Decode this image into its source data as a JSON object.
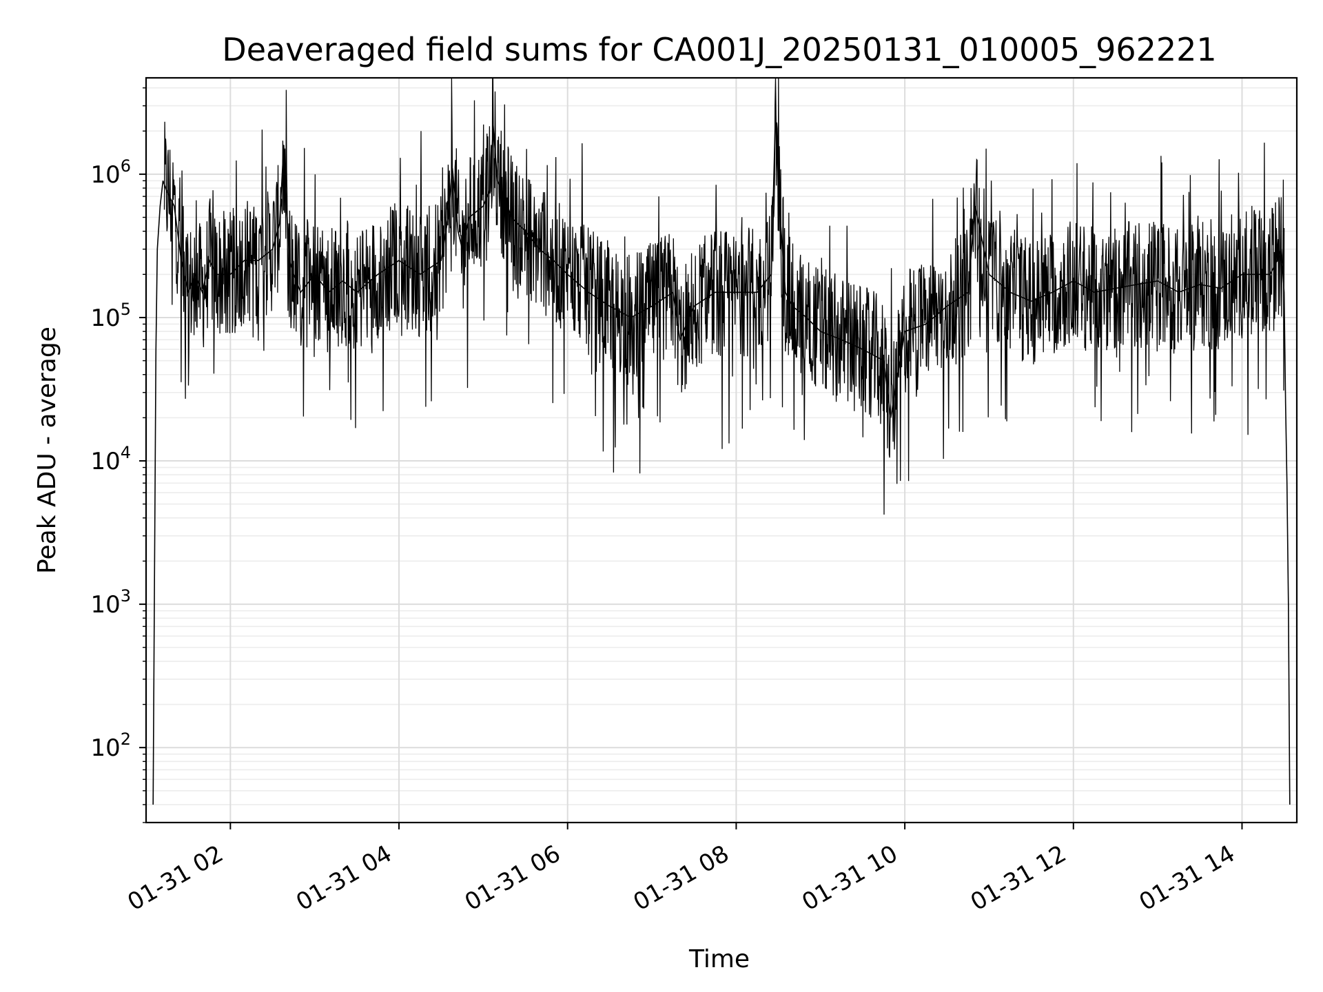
{
  "chart_data": {
    "type": "line",
    "title": "Deaveraged field sums for CA001J_20250131_010005_962221",
    "xlabel": "Time",
    "ylabel": "Peak ADU - average",
    "y_scale": "log",
    "ylim": [
      30,
      4700000
    ],
    "xlim": [
      "2025-01-31 01:00",
      "2025-01-31 14:39"
    ],
    "grid": true,
    "line_color": "#000000",
    "x_tick_labels": [
      "01-31 02",
      "01-31 04",
      "01-31 06",
      "01-31 08",
      "01-31 10",
      "01-31 12",
      "01-31 14"
    ],
    "y_tick_labels": [
      {
        "base": "10",
        "exp": "2"
      },
      {
        "base": "10",
        "exp": "3"
      },
      {
        "base": "10",
        "exp": "4"
      },
      {
        "base": "10",
        "exp": "5"
      },
      {
        "base": "10",
        "exp": "6"
      }
    ],
    "series": [
      {
        "x": [
          "2025-01-31 01:05",
          "2025-01-31 01:06",
          "2025-01-31 01:07",
          "2025-01-31 01:08",
          "2025-01-31 01:10",
          "2025-01-31 01:12",
          "2025-01-31 01:15",
          "2025-01-31 01:20",
          "2025-01-31 01:25",
          "2025-01-31 01:30",
          "2025-01-31 01:35",
          "2025-01-31 01:40",
          "2025-01-31 01:45",
          "2025-01-31 01:50",
          "2025-01-31 02:00",
          "2025-01-31 02:10",
          "2025-01-31 02:20",
          "2025-01-31 02:30",
          "2025-01-31 02:35",
          "2025-01-31 02:38",
          "2025-01-31 02:40",
          "2025-01-31 02:42",
          "2025-01-31 02:45",
          "2025-01-31 02:50",
          "2025-01-31 03:00",
          "2025-01-31 03:10",
          "2025-01-31 03:20",
          "2025-01-31 03:30",
          "2025-01-31 03:45",
          "2025-01-31 04:00",
          "2025-01-31 04:15",
          "2025-01-31 04:30",
          "2025-01-31 04:35",
          "2025-01-31 04:38",
          "2025-01-31 04:40",
          "2025-01-31 04:42",
          "2025-01-31 04:45",
          "2025-01-31 04:50",
          "2025-01-31 05:00",
          "2025-01-31 05:05",
          "2025-01-31 05:07",
          "2025-01-31 05:10",
          "2025-01-31 05:15",
          "2025-01-31 05:20",
          "2025-01-31 05:30",
          "2025-01-31 05:40",
          "2025-01-31 05:50",
          "2025-01-31 06:00",
          "2025-01-31 06:15",
          "2025-01-31 06:30",
          "2025-01-31 06:45",
          "2025-01-31 07:00",
          "2025-01-31 07:15",
          "2025-01-31 07:20",
          "2025-01-31 07:30",
          "2025-01-31 07:45",
          "2025-01-31 08:00",
          "2025-01-31 08:15",
          "2025-01-31 08:25",
          "2025-01-31 08:28",
          "2025-01-31 08:30",
          "2025-01-31 08:32",
          "2025-01-31 08:35",
          "2025-01-31 08:40",
          "2025-01-31 08:50",
          "2025-01-31 09:00",
          "2025-01-31 09:15",
          "2025-01-31 09:30",
          "2025-01-31 09:45",
          "2025-01-31 09:50",
          "2025-01-31 10:00",
          "2025-01-31 10:15",
          "2025-01-31 10:30",
          "2025-01-31 10:45",
          "2025-01-31 10:50",
          "2025-01-31 11:00",
          "2025-01-31 11:15",
          "2025-01-31 11:30",
          "2025-01-31 11:45",
          "2025-01-31 12:00",
          "2025-01-31 12:15",
          "2025-01-31 12:30",
          "2025-01-31 12:45",
          "2025-01-31 13:00",
          "2025-01-31 13:15",
          "2025-01-31 13:30",
          "2025-01-31 13:45",
          "2025-01-31 14:00",
          "2025-01-31 14:10",
          "2025-01-31 14:20",
          "2025-01-31 14:25",
          "2025-01-31 14:28",
          "2025-01-31 14:30",
          "2025-01-31 14:31",
          "2025-01-31 14:32",
          "2025-01-31 14:33",
          "2025-01-31 14:34"
        ],
        "values": [
          40,
          1500,
          60000,
          300000,
          600000,
          900000,
          750000,
          600000,
          250000,
          150000,
          200000,
          150000,
          250000,
          200000,
          200000,
          250000,
          250000,
          300000,
          450000,
          1600000,
          600000,
          250000,
          200000,
          150000,
          200000,
          150000,
          180000,
          150000,
          200000,
          250000,
          200000,
          250000,
          500000,
          1100000,
          700000,
          400000,
          300000,
          500000,
          600000,
          800000,
          2200000,
          900000,
          700000,
          500000,
          400000,
          300000,
          250000,
          200000,
          150000,
          120000,
          100000,
          120000,
          150000,
          70000,
          120000,
          150000,
          150000,
          150000,
          200000,
          2800000,
          800000,
          400000,
          150000,
          120000,
          100000,
          80000,
          70000,
          60000,
          50000,
          20000,
          80000,
          90000,
          120000,
          150000,
          600000,
          200000,
          150000,
          130000,
          150000,
          180000,
          150000,
          160000,
          170000,
          180000,
          150000,
          170000,
          160000,
          200000,
          200000,
          200000,
          250000,
          300000,
          150000,
          25000,
          7000,
          1000,
          40
        ]
      }
    ]
  }
}
